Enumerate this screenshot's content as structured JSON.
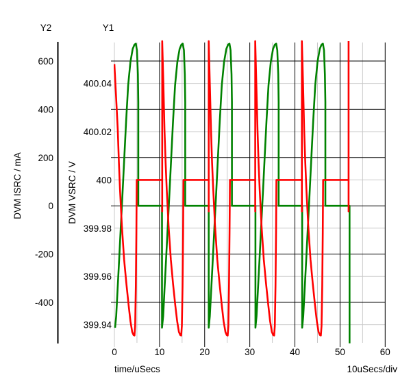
{
  "chart_data": {
    "type": "line",
    "x_axis": {
      "label": "time/uSecs",
      "div_label": "10uSecs/div",
      "range": [
        0,
        60
      ],
      "ticks": [
        "0",
        "10",
        "20",
        "30",
        "40",
        "50",
        "60"
      ],
      "tick_values": [
        0,
        10,
        20,
        30,
        40,
        50,
        60
      ],
      "gray_gridlines": [
        0,
        5,
        15,
        25,
        35,
        45,
        55
      ],
      "black_gridlines": [
        10,
        20,
        30,
        40,
        50,
        60
      ]
    },
    "y1_axis": {
      "title": "Y1",
      "label": "DVM VSRC / V",
      "ticks": [
        "400.04",
        "400.02",
        "400",
        "399.98",
        "399.96",
        "399.94"
      ],
      "tick_values": [
        400.04,
        400.02,
        400,
        399.98,
        399.96,
        399.94
      ],
      "gridline_color": "#c8c8c8"
    },
    "y2_axis": {
      "title": "Y2",
      "label": "DVM ISRC / mA",
      "ticks": [
        "600",
        "400",
        "200",
        "0",
        "-200",
        "-400"
      ],
      "tick_values": [
        600,
        400,
        200,
        0,
        -200,
        -400
      ],
      "gridline_color": "#000000"
    },
    "series": [
      {
        "name": "DVM ISRC",
        "axis": "y2",
        "unit": "mA",
        "color": "#008200",
        "period": 10.35,
        "cycle_starts": [
          0.15,
          10.55,
          20.9,
          31.25,
          41.6
        ],
        "arch_shape": [
          [
            0,
            -505
          ],
          [
            0.25,
            -458
          ],
          [
            0.55,
            -350
          ],
          [
            0.9,
            -225
          ],
          [
            1.25,
            -95
          ],
          [
            1.6,
            30
          ],
          [
            2.0,
            185
          ],
          [
            2.45,
            350
          ],
          [
            2.9,
            500
          ],
          [
            3.4,
            596
          ],
          [
            3.9,
            650
          ],
          [
            4.3,
            668
          ],
          [
            4.6,
            672
          ],
          [
            4.85,
            645
          ],
          [
            5.05,
            545
          ],
          [
            5.15,
            430
          ]
        ],
        "drop_tau": 5.15,
        "flat_value": 0,
        "end_t": 52.1,
        "end_value": -570
      },
      {
        "name": "DVM VSRC",
        "axis": "y1",
        "unit": "V",
        "color": "#ff0000",
        "period": 10.35,
        "start_point": [
          0,
          400.048
        ],
        "descent_starts": [
          0.25,
          10.6,
          20.9,
          31.2,
          41.55
        ],
        "descent_shape": [
          [
            0,
            400.0575
          ],
          [
            0.25,
            400.04
          ],
          [
            0.5,
            400.021
          ],
          [
            0.75,
            400.007
          ],
          [
            1.0,
            399.996
          ],
          [
            1.4,
            399.981
          ],
          [
            1.9,
            399.967
          ],
          [
            2.4,
            399.957
          ],
          [
            2.9,
            399.948
          ],
          [
            3.3,
            399.9415
          ],
          [
            3.7,
            399.937
          ],
          [
            4.0,
            399.9357
          ],
          [
            4.2,
            399.9355
          ],
          [
            4.35,
            399.9395
          ],
          [
            4.5,
            399.956
          ],
          [
            4.62,
            399.978
          ],
          [
            4.7,
            400.0
          ]
        ],
        "flat_value": 400,
        "spike_top": 400.0575,
        "notch_bottom": 399.987,
        "final_spike_t": 51.9
      }
    ]
  }
}
